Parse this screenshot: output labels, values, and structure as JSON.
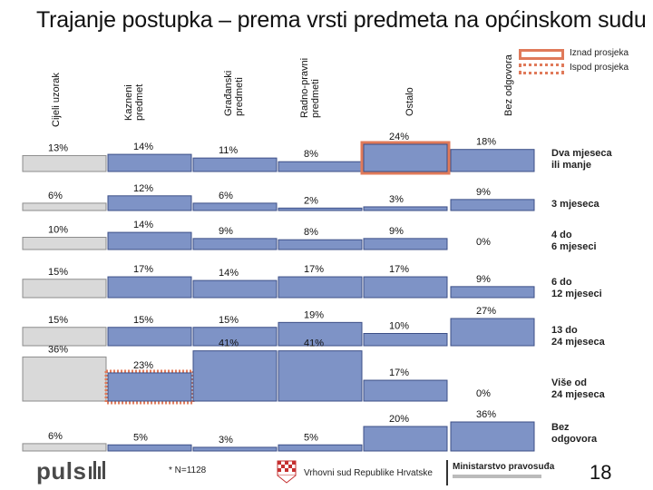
{
  "title": "Trajanje postupka – prema vrsti predmeta na općinskom sudu",
  "columns": [
    {
      "label": "Cijeli uzorak"
    },
    {
      "label": "Kazneni predmet"
    },
    {
      "label": "Građanski predmeti"
    },
    {
      "label": "Radno-pravni predmeti"
    },
    {
      "label": "Ostalo"
    },
    {
      "label": "Bez odgovora"
    }
  ],
  "legend": {
    "above": "Iznad prosjeka",
    "below": "Ispod prosjeka"
  },
  "footer": {
    "note": "* N=1128",
    "court": "Vrhovni sud Republike Hrvatske",
    "ministry": "Ministarstvo pravosuđa",
    "brand": "puls",
    "page": "18"
  },
  "colors": {
    "bar": "#7e93c6",
    "bar_stroke": "#3c4f87",
    "total_bar": "#d9d9d9",
    "above": "#e07a5a",
    "below": "#e07a5a"
  },
  "chart_data": {
    "type": "bar",
    "categories": [
      "Dva mjeseca ili manje",
      "3 mjeseca",
      "4 do 6 mjeseci",
      "6 do 12 mjeseci",
      "13 do 24 mjeseca",
      "Više od 24 mjeseca",
      "Bez odgovora"
    ],
    "series": [
      {
        "name": "Cijeli uzorak",
        "values": [
          13,
          6,
          10,
          15,
          15,
          36,
          6
        ],
        "labels": [
          "13%",
          "6%",
          "10%",
          "15%",
          "15%",
          "36%",
          "6%"
        ],
        "marks": [
          "",
          "",
          "",
          "",
          "",
          "",
          ""
        ]
      },
      {
        "name": "Kazneni predmet",
        "values": [
          14,
          12,
          14,
          17,
          15,
          23,
          5
        ],
        "labels": [
          "14%",
          "12%",
          "14%",
          "17%",
          "15%",
          "23%",
          "5%"
        ],
        "marks": [
          "",
          "",
          "",
          "",
          "",
          "below",
          ""
        ]
      },
      {
        "name": "Građanski predmeti",
        "values": [
          11,
          6,
          9,
          14,
          15,
          41,
          3
        ],
        "labels": [
          "11%",
          "6%",
          "9%",
          "14%",
          "15%",
          "41%",
          "3%"
        ],
        "marks": [
          "",
          "",
          "",
          "",
          "",
          "",
          ""
        ]
      },
      {
        "name": "Radno-pravni predmeti",
        "values": [
          8,
          2,
          8,
          17,
          19,
          41,
          5
        ],
        "labels": [
          "8%",
          "2%",
          "8%",
          "17%",
          "19%",
          "41%",
          "5%"
        ],
        "marks": [
          "",
          "",
          "",
          "",
          "",
          "",
          ""
        ]
      },
      {
        "name": "Ostalo",
        "values": [
          24,
          3,
          9,
          17,
          10,
          17,
          20
        ],
        "labels": [
          "24%",
          "3%",
          "9%",
          "17%",
          "10%",
          "17%",
          "20%"
        ],
        "marks": [
          "above",
          "",
          "",
          "",
          "",
          "",
          ""
        ]
      },
      {
        "name": "Bez odgovora",
        "values": [
          18,
          9,
          0,
          9,
          27,
          0,
          36
        ],
        "labels": [
          "18%",
          "9%",
          "0%",
          "9%",
          "27%",
          "0%",
          "36%"
        ],
        "marks": [
          "",
          "",
          "",
          "",
          "",
          "",
          ""
        ]
      }
    ]
  }
}
